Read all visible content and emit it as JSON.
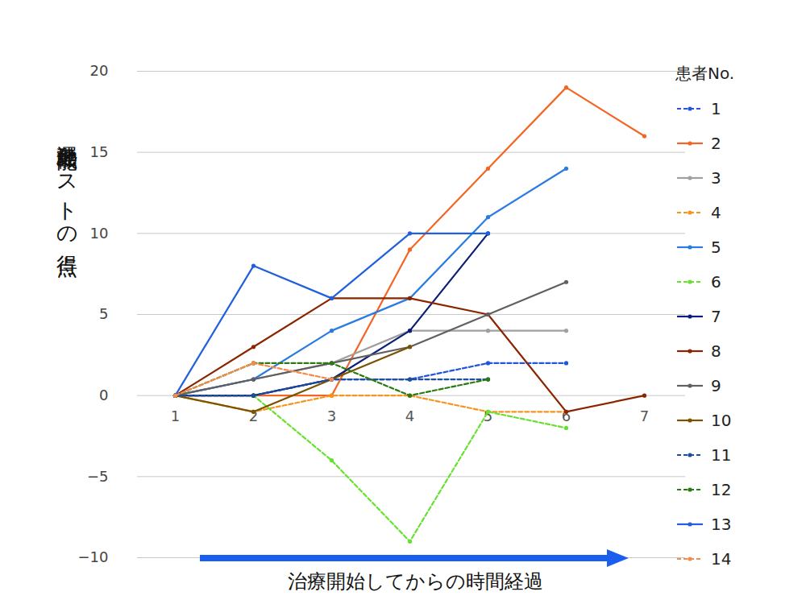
{
  "chart_data": {
    "type": "line",
    "x_label": "治療開始してからの時間経過",
    "y_label": "運動機能テストの得点",
    "legend_title": "患者No.",
    "legend": "right",
    "grid": true,
    "marker": "circle",
    "x": [
      1,
      2,
      3,
      4,
      5,
      6,
      7
    ],
    "xlim": [
      1,
      7
    ],
    "xticks": [
      1,
      2,
      3,
      4,
      5,
      6,
      7
    ],
    "ylim": [
      -10,
      20
    ],
    "yticks": [
      -10,
      -5,
      0,
      5,
      10,
      15,
      20
    ],
    "series": [
      {
        "name": "1",
        "color": "#2255dd",
        "line_style": "dashed",
        "values": [
          0,
          0,
          1,
          1,
          2,
          2,
          null
        ]
      },
      {
        "name": "2",
        "color": "#f26522",
        "line_style": "solid",
        "values": [
          0,
          0,
          0,
          9,
          14,
          19,
          16
        ]
      },
      {
        "name": "3",
        "color": "#a0a0a0",
        "line_style": "solid",
        "values": [
          0,
          1,
          2,
          4,
          4,
          4,
          null
        ]
      },
      {
        "name": "4",
        "color": "#f7941d",
        "line_style": "dashed",
        "values": [
          0,
          -1,
          0,
          0,
          -1,
          -1,
          null
        ]
      },
      {
        "name": "5",
        "color": "#2b7be0",
        "line_style": "solid",
        "values": [
          0,
          1,
          4,
          6,
          11,
          14,
          null
        ]
      },
      {
        "name": "6",
        "color": "#66e22e",
        "line_style": "dashed",
        "values": [
          0,
          0,
          -4,
          -9,
          -1,
          -2,
          null
        ]
      },
      {
        "name": "7",
        "color": "#0b1f7a",
        "line_style": "solid",
        "values": [
          0,
          0,
          1,
          4,
          10,
          null,
          null
        ]
      },
      {
        "name": "8",
        "color": "#8b2500",
        "line_style": "solid",
        "values": [
          0,
          3,
          6,
          6,
          5,
          -1,
          0
        ]
      },
      {
        "name": "9",
        "color": "#606060",
        "line_style": "solid",
        "values": [
          0,
          1,
          2,
          3,
          5,
          7,
          null
        ]
      },
      {
        "name": "10",
        "color": "#7a5200",
        "line_style": "solid",
        "values": [
          0,
          -1,
          1,
          3,
          null,
          null,
          null
        ]
      },
      {
        "name": "11",
        "color": "#1f4e9a",
        "line_style": "dashed",
        "values": [
          0,
          0,
          1,
          1,
          1,
          null,
          null
        ]
      },
      {
        "name": "12",
        "color": "#2a7a10",
        "line_style": "dashed",
        "values": [
          0,
          2,
          2,
          0,
          1,
          null,
          null
        ]
      },
      {
        "name": "13",
        "color": "#1f5fe0",
        "line_style": "solid",
        "values": [
          0,
          8,
          6,
          10,
          10,
          null,
          null
        ]
      },
      {
        "name": "14",
        "color": "#f58a4c",
        "line_style": "dashed",
        "values": [
          0,
          2,
          1,
          null,
          null,
          null,
          null
        ]
      }
    ]
  }
}
